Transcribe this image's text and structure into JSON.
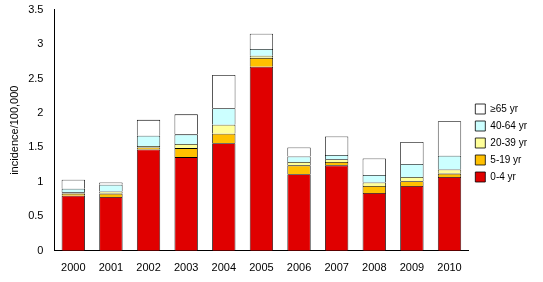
{
  "chart_data": {
    "type": "bar",
    "y_label": "incidence/100,000",
    "categories": [
      "2000",
      "2001",
      "2002",
      "2003",
      "2004",
      "2005",
      "2006",
      "2007",
      "2008",
      "2009",
      "2010"
    ],
    "series": [
      {
        "name": "0-4 yr",
        "color": "#e00000",
        "values": [
          0.8,
          0.78,
          1.47,
          1.36,
          1.56,
          2.67,
          1.11,
          1.24,
          0.84,
          0.94,
          1.07
        ]
      },
      {
        "name": "5-19 yr",
        "color": "#ffc000",
        "values": [
          0.03,
          0.05,
          0.03,
          0.13,
          0.14,
          0.13,
          0.13,
          0.05,
          0.1,
          0.07,
          0.05
        ]
      },
      {
        "name": "20-39 yr",
        "color": "#ffff99",
        "values": [
          0.02,
          0.03,
          0.02,
          0.06,
          0.13,
          0.03,
          0.05,
          0.04,
          0.05,
          0.06,
          0.06
        ]
      },
      {
        "name": "40-64 yr",
        "color": "#ccffff",
        "values": [
          0.05,
          0.1,
          0.15,
          0.14,
          0.24,
          0.1,
          0.08,
          0.06,
          0.11,
          0.19,
          0.2
        ]
      },
      {
        "name": "≥65 yr",
        "color": "#ffffff",
        "values": [
          0.13,
          0.03,
          0.23,
          0.29,
          0.48,
          0.22,
          0.13,
          0.27,
          0.24,
          0.32,
          0.5
        ]
      }
    ],
    "ylim": [
      0,
      3.5
    ],
    "yticks": [
      0,
      0.5,
      1,
      1.5,
      2,
      2.5,
      3,
      3.5
    ],
    "stacked": true,
    "grid": false,
    "legend": "right"
  }
}
